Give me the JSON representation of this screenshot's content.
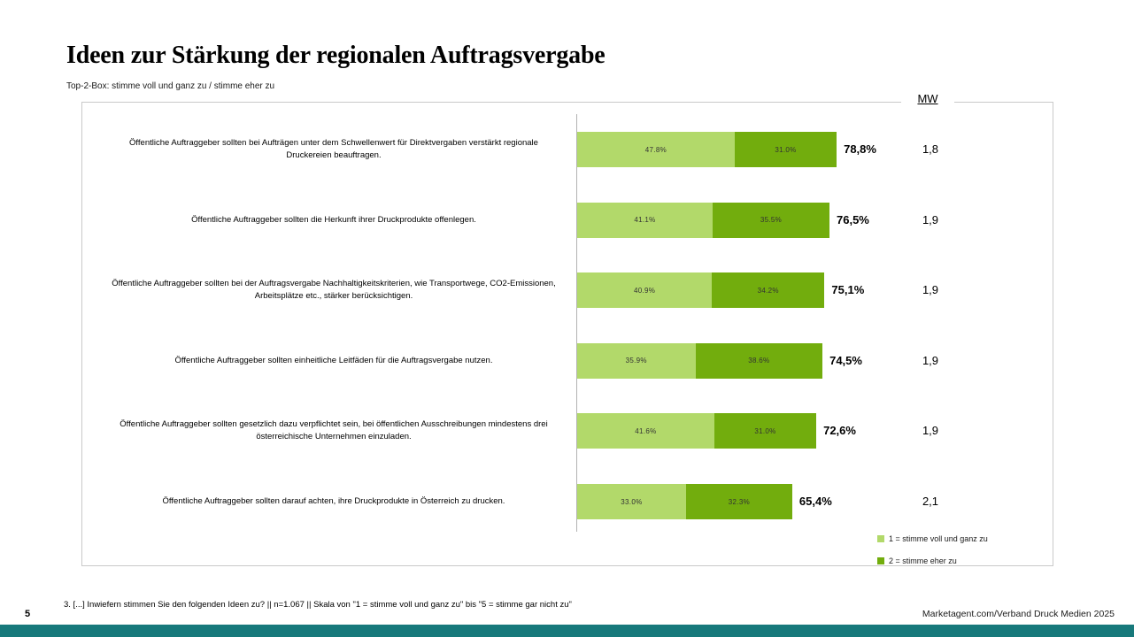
{
  "slide": {
    "title": "Ideen zur Stärkung der regionalen Auftragsvergabe",
    "subtitle": "Top-2-Box: stimme voll und ganz zu / stimme eher zu",
    "page_number": "5",
    "footnote": "3. [...] Inwiefern stimmen Sie den folgenden Ideen zu? || n=1.067 || Skala von \"1 = stimme voll und ganz zu\" bis \"5 = stimme gar nicht zu\"",
    "source": "Marketagent.com/Verband Druck Medien 2025"
  },
  "colors": {
    "bar_light_green": "#b2d96a",
    "bar_dark_green": "#72ad0d",
    "accent_teal": "#17797b",
    "box_border": "#c9c9c9",
    "axis_gray": "#b3b3b3"
  },
  "chart_data": {
    "type": "bar",
    "orientation": "horizontal",
    "stacked": true,
    "unit": "%",
    "xlim": [
      0,
      100
    ],
    "grid": false,
    "legend_position": "bottom-right",
    "mw_label": "MW",
    "categories": [
      "Öffentliche Auftraggeber sollten bei Aufträgen unter dem Schwellenwert für Direktvergaben verstärkt regionale Druckereien beauftragen.",
      "Öffentliche Auftraggeber sollten die Herkunft ihrer Druckprodukte offenlegen.",
      "Öffentliche Auftraggeber sollten bei der Auftragsvergabe Nachhaltigkeitskriterien, wie Transportwege, CO2-Emissionen, Arbeitsplätze etc., stärker berücksichtigen.",
      "Öffentliche Auftraggeber sollten einheitliche Leitfäden für die Auftragsvergabe nutzen.",
      "Öffentliche Auftraggeber sollten gesetzlich dazu verpflichtet sein, bei öffentlichen Ausschreibungen mindestens drei österreichische Unternehmen einzuladen.",
      "Öffentliche Auftraggeber sollten darauf achten, ihre Druckprodukte in Österreich zu drucken."
    ],
    "series": [
      {
        "name": "1 = stimme voll und ganz zu",
        "color": "#b2d96a",
        "values": [
          47.8,
          41.1,
          40.9,
          35.9,
          41.6,
          33.0
        ],
        "labels": [
          "47.8%",
          "41.1%",
          "40.9%",
          "35.9%",
          "41.6%",
          "33.0%"
        ]
      },
      {
        "name": "2 = stimme eher zu",
        "color": "#72ad0d",
        "values": [
          31.0,
          35.5,
          34.2,
          38.6,
          31.0,
          32.3
        ],
        "labels": [
          "31.0%",
          "35.5%",
          "34.2%",
          "38.6%",
          "31.0%",
          "32.3%"
        ]
      }
    ],
    "totals": [
      "78,8%",
      "76,5%",
      "75,1%",
      "74,5%",
      "72,6%",
      "65,4%"
    ],
    "mw_values": [
      "1,8",
      "1,9",
      "1,9",
      "1,9",
      "1,9",
      "2,1"
    ]
  }
}
